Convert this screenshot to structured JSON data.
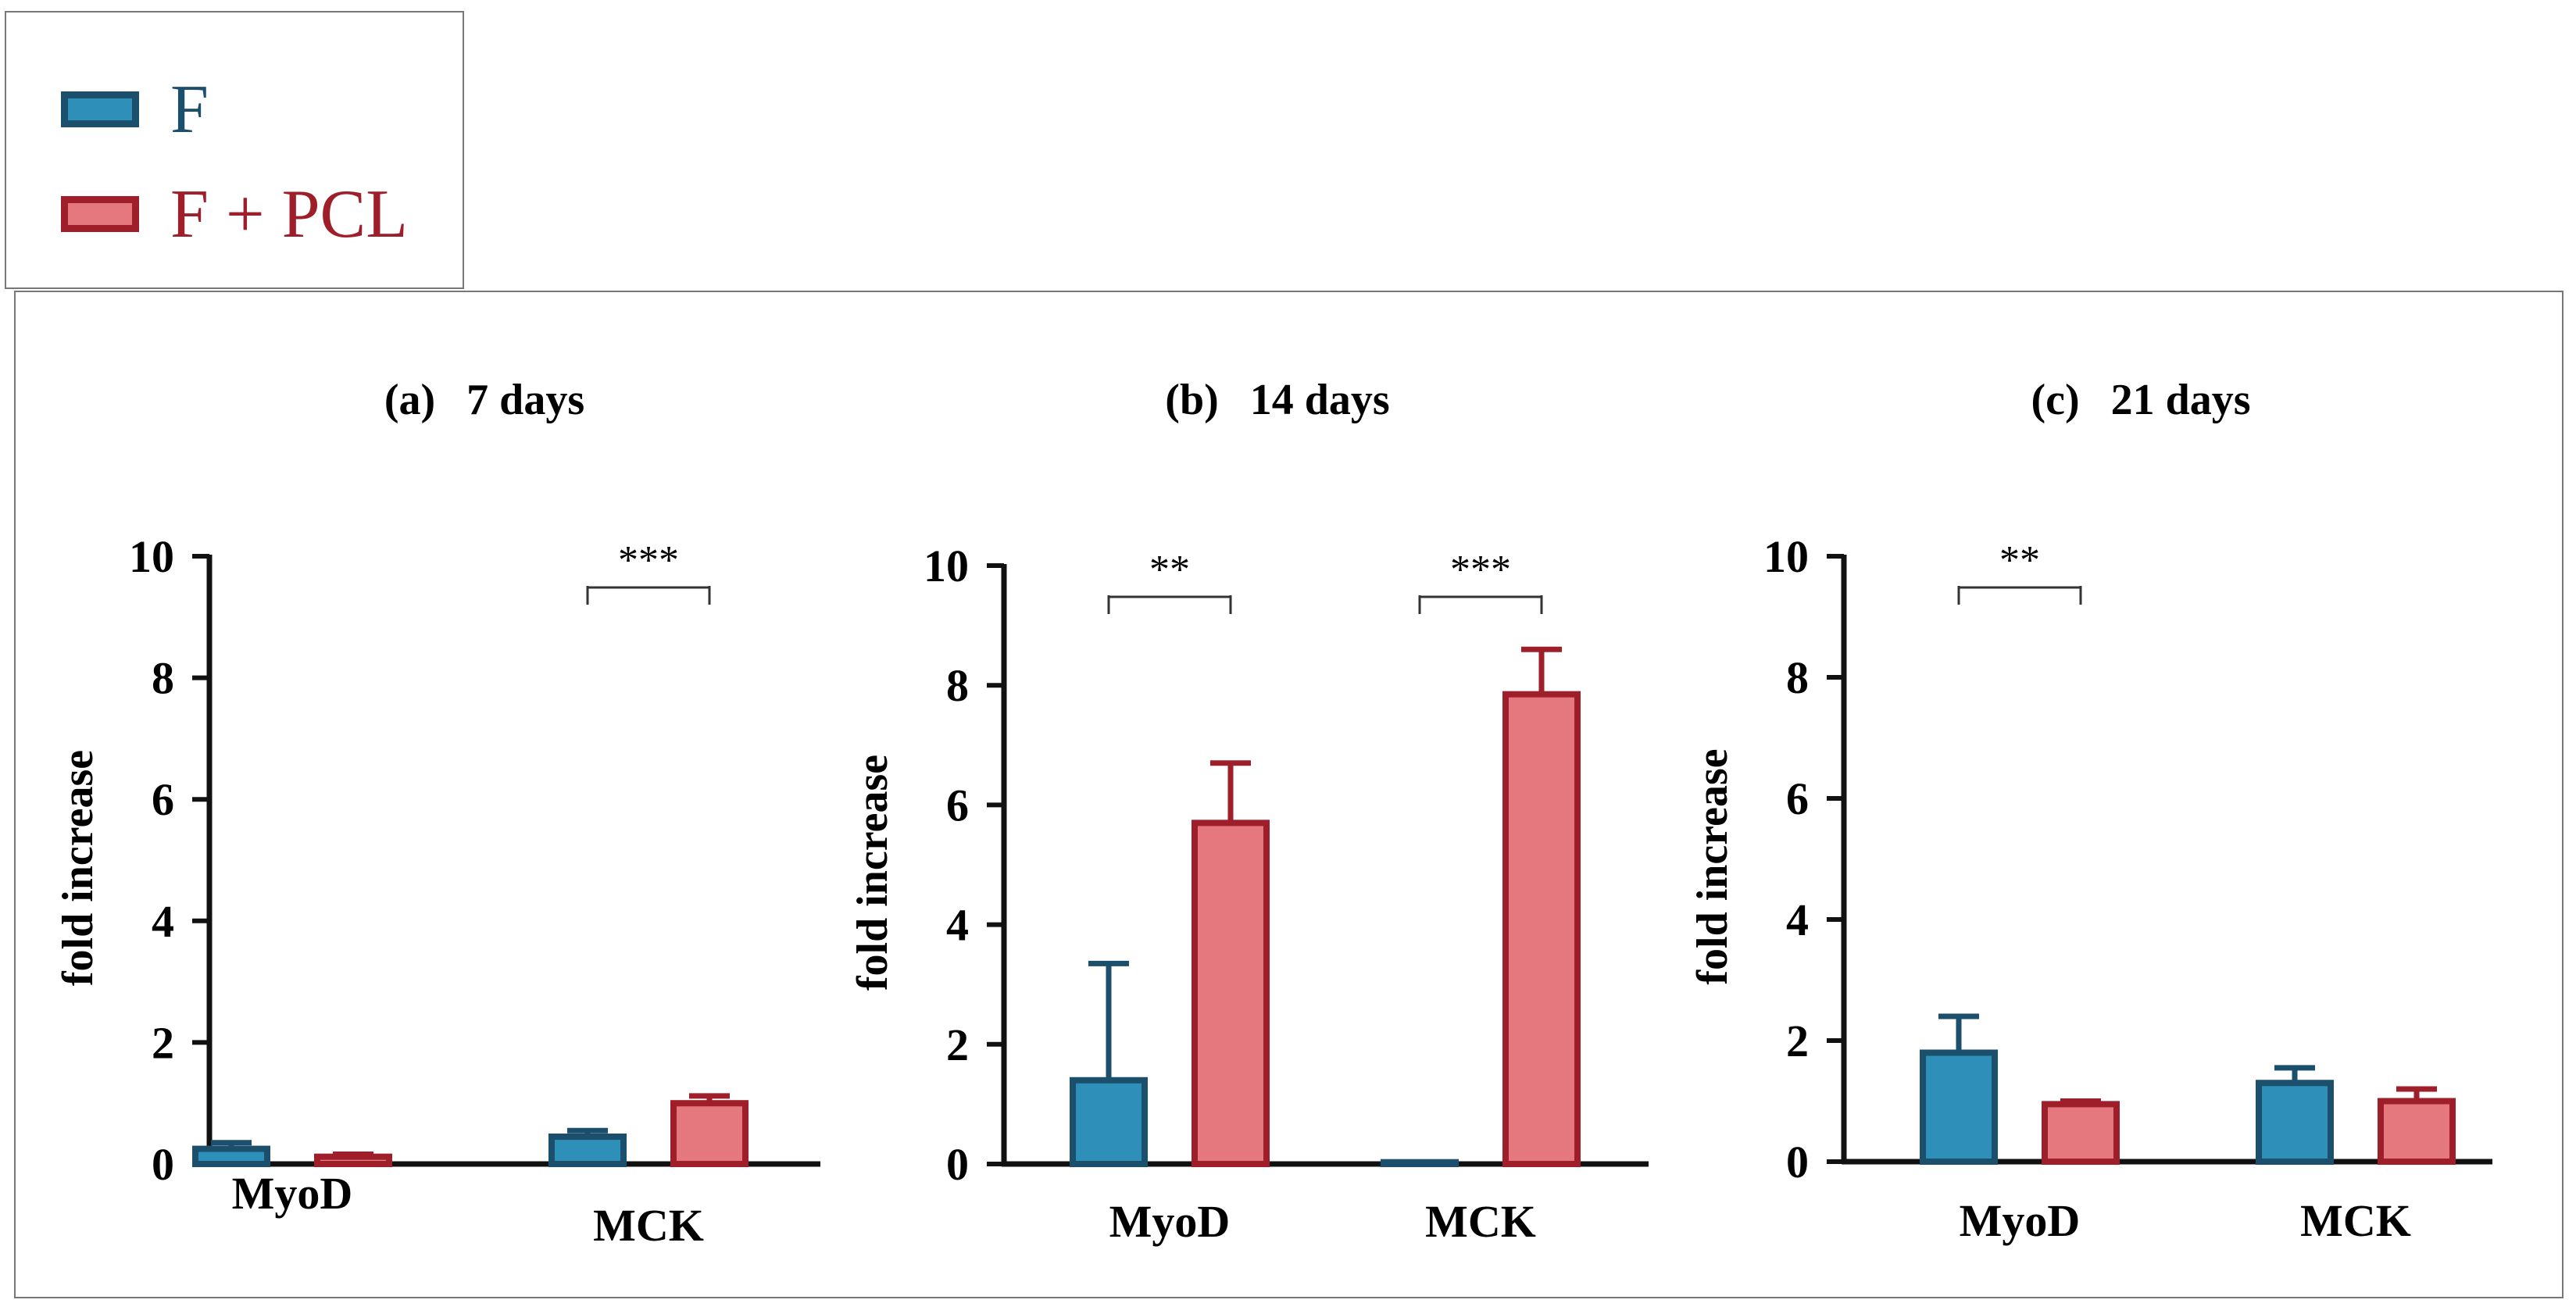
{
  "legend": {
    "items": [
      {
        "label": "F",
        "fill": "#2e8fb8",
        "stroke": "#1b4f6c",
        "text_color": "#1b4f6c"
      },
      {
        "label": "F + PCL",
        "fill": "#e5787e",
        "stroke": "#9e1e2a",
        "text_color": "#9e1e2a"
      }
    ]
  },
  "chart_data": [
    {
      "type": "bar",
      "panel_label": "(a)",
      "title": "7 days",
      "ylabel": "fold increase",
      "ylim": [
        0,
        10
      ],
      "yticks": [
        "0",
        "2",
        "4",
        "6",
        "8",
        "10"
      ],
      "categories": [
        "MyoD",
        "MCK"
      ],
      "series": [
        {
          "name": "F",
          "values": [
            0.25,
            0.45
          ],
          "errors": [
            0.1,
            0.1
          ]
        },
        {
          "name": "F + PCL",
          "values": [
            0.12,
            1.0
          ],
          "errors": [
            0.04,
            0.12
          ]
        }
      ],
      "significance": [
        {
          "category": "MCK",
          "label": "***"
        }
      ]
    },
    {
      "type": "bar",
      "panel_label": "(b)",
      "title": "14 days",
      "ylabel": "fold increase",
      "ylim": [
        0,
        10
      ],
      "yticks": [
        "0",
        "2",
        "4",
        "6",
        "8",
        "10"
      ],
      "categories": [
        "MyoD",
        "MCK"
      ],
      "series": [
        {
          "name": "F",
          "values": [
            1.4,
            0.03
          ],
          "errors": [
            1.95,
            0.0
          ]
        },
        {
          "name": "F + PCL",
          "values": [
            5.7,
            7.85
          ],
          "errors": [
            1.0,
            0.75
          ]
        }
      ],
      "significance": [
        {
          "category": "MyoD",
          "label": "**"
        },
        {
          "category": "MCK",
          "label": "***"
        }
      ]
    },
    {
      "type": "bar",
      "panel_label": "(c)",
      "title": "21 days",
      "ylabel": "fold increase",
      "ylim": [
        0,
        10
      ],
      "yticks": [
        "0",
        "2",
        "4",
        "6",
        "8",
        "10"
      ],
      "categories": [
        "MyoD",
        "MCK"
      ],
      "series": [
        {
          "name": "F",
          "values": [
            1.8,
            1.3
          ],
          "errors": [
            0.6,
            0.25
          ]
        },
        {
          "name": "F + PCL",
          "values": [
            0.95,
            1.0
          ],
          "errors": [
            0.05,
            0.2
          ]
        }
      ],
      "significance": [
        {
          "category": "MyoD",
          "label": "**"
        }
      ]
    }
  ]
}
